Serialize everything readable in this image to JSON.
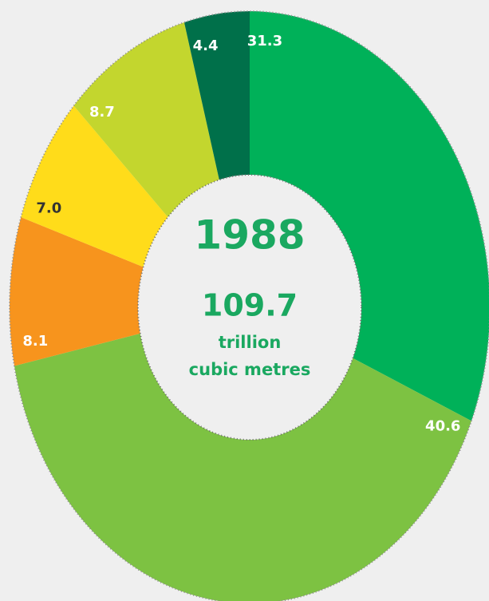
{
  "chart_data": {
    "type": "donut",
    "title": "1988",
    "total": "109.7",
    "unit_lines": [
      "trillion",
      "cubic metres"
    ],
    "categories": [
      null,
      null,
      null,
      null,
      null,
      null
    ],
    "values": [
      31.3,
      40.6,
      8.1,
      7.0,
      8.7,
      4.4
    ],
    "value_labels": [
      "31.3",
      "40.6",
      "8.1",
      "7.0",
      "8.7",
      "4.4"
    ],
    "colors": [
      "#00b159",
      "#7dc242",
      "#f7941d",
      "#ffdc1a",
      "#c3d62e",
      "#00704a"
    ],
    "label_colors": [
      "#ffffff",
      "#ffffff",
      "#ffffff",
      "#333333",
      "#ffffff",
      "#ffffff"
    ]
  }
}
